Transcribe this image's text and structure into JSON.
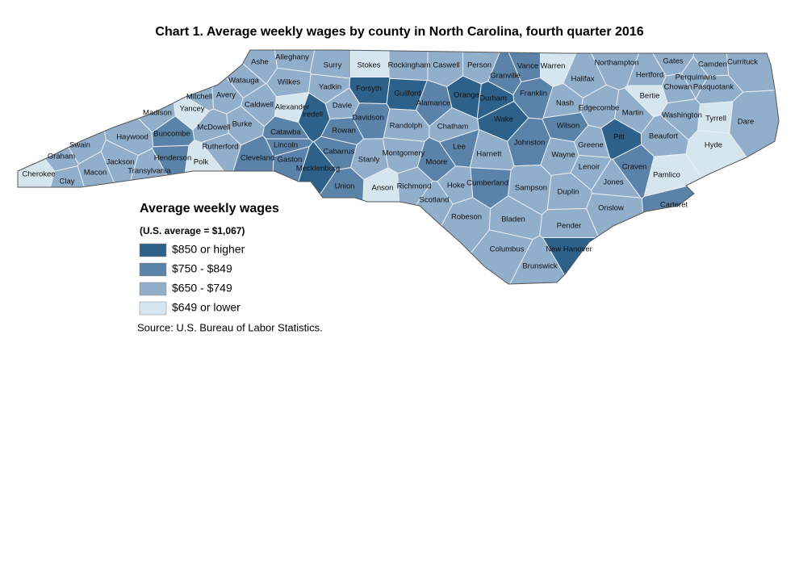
{
  "title": "Chart 1. Average weekly wages by county in North Carolina, fourth quarter 2016",
  "legend": {
    "title": "Average weekly wages",
    "subtitle": "(U.S. average = $1,067)",
    "items": [
      {
        "label": "$850 or higher",
        "color": "#2e6189"
      },
      {
        "label": "$750 - $849",
        "color": "#5b82a8"
      },
      {
        "label": "$650 - $749",
        "color": "#91aecb"
      },
      {
        "label": "$649 or lower",
        "color": "#d6e6ee"
      }
    ]
  },
  "source": "Source: U.S. Bureau of Labor Statistics.",
  "counties": [
    {
      "name": "Ashe",
      "color": "#91aecb"
    },
    {
      "name": "Alleghany",
      "color": "#91aecb"
    },
    {
      "name": "Surry",
      "color": "#91aecb"
    },
    {
      "name": "Stokes",
      "color": "#d6e6ee"
    },
    {
      "name": "Rockingham",
      "color": "#91aecb"
    },
    {
      "name": "Caswell",
      "color": "#91aecb"
    },
    {
      "name": "Person",
      "color": "#91aecb"
    },
    {
      "name": "Vance",
      "color": "#5b82a8"
    },
    {
      "name": "Warren",
      "color": "#d6e6ee"
    },
    {
      "name": "Northampton",
      "color": "#91aecb"
    },
    {
      "name": "Gates",
      "color": "#91aecb"
    },
    {
      "name": "Camden",
      "color": "#91aecb"
    },
    {
      "name": "Currituck",
      "color": "#91aecb"
    },
    {
      "name": "Hertford",
      "color": "#91aecb"
    },
    {
      "name": "Perquimans",
      "color": "#91aecb"
    },
    {
      "name": "Chowan",
      "color": "#91aecb"
    },
    {
      "name": "Pasquotank",
      "color": "#91aecb"
    },
    {
      "name": "Watauga",
      "color": "#91aecb"
    },
    {
      "name": "Wilkes",
      "color": "#91aecb"
    },
    {
      "name": "Yadkin",
      "color": "#91aecb"
    },
    {
      "name": "Forsyth",
      "color": "#2e6189"
    },
    {
      "name": "Guilford",
      "color": "#2e6189"
    },
    {
      "name": "Alamance",
      "color": "#5b82a8"
    },
    {
      "name": "Orange",
      "color": "#2e6189"
    },
    {
      "name": "Durham",
      "color": "#2e6189"
    },
    {
      "name": "Granville",
      "color": "#5b82a8"
    },
    {
      "name": "Franklin",
      "color": "#5b82a8"
    },
    {
      "name": "Halifax",
      "color": "#91aecb"
    },
    {
      "name": "Avery",
      "color": "#91aecb"
    },
    {
      "name": "Mitchell",
      "color": "#91aecb"
    },
    {
      "name": "Yancey",
      "color": "#d6e6ee"
    },
    {
      "name": "Madison",
      "color": "#91aecb"
    },
    {
      "name": "Caldwell",
      "color": "#91aecb"
    },
    {
      "name": "Alexander",
      "color": "#d6e6ee"
    },
    {
      "name": "Iredell",
      "color": "#2e6189"
    },
    {
      "name": "Davie",
      "color": "#91aecb"
    },
    {
      "name": "Davidson",
      "color": "#5b82a8"
    },
    {
      "name": "Rowan",
      "color": "#5b82a8"
    },
    {
      "name": "Randolph",
      "color": "#91aecb"
    },
    {
      "name": "Chatham",
      "color": "#91aecb"
    },
    {
      "name": "Wake",
      "color": "#2e6189"
    },
    {
      "name": "Nash",
      "color": "#91aecb"
    },
    {
      "name": "Edgecombe",
      "color": "#91aecb"
    },
    {
      "name": "Martin",
      "color": "#91aecb"
    },
    {
      "name": "Bertie",
      "color": "#d6e6ee"
    },
    {
      "name": "Washington",
      "color": "#91aecb"
    },
    {
      "name": "Tyrrell",
      "color": "#d6e6ee"
    },
    {
      "name": "Dare",
      "color": "#91aecb"
    },
    {
      "name": "Wilson",
      "color": "#5b82a8"
    },
    {
      "name": "Pitt",
      "color": "#2e6189"
    },
    {
      "name": "Beaufort",
      "color": "#91aecb"
    },
    {
      "name": "Hyde",
      "color": "#d6e6ee"
    },
    {
      "name": "Haywood",
      "color": "#91aecb"
    },
    {
      "name": "Buncombe",
      "color": "#5b82a8"
    },
    {
      "name": "McDowell",
      "color": "#91aecb"
    },
    {
      "name": "Burke",
      "color": "#91aecb"
    },
    {
      "name": "Catawba",
      "color": "#5b82a8"
    },
    {
      "name": "Lincoln",
      "color": "#5b82a8"
    },
    {
      "name": "Rutherford",
      "color": "#91aecb"
    },
    {
      "name": "Cabarrus",
      "color": "#5b82a8"
    },
    {
      "name": "Stanly",
      "color": "#91aecb"
    },
    {
      "name": "Montgomery",
      "color": "#91aecb"
    },
    {
      "name": "Moore",
      "color": "#5b82a8"
    },
    {
      "name": "Lee",
      "color": "#5b82a8"
    },
    {
      "name": "Harnett",
      "color": "#91aecb"
    },
    {
      "name": "Johnston",
      "color": "#5b82a8"
    },
    {
      "name": "Wayne",
      "color": "#91aecb"
    },
    {
      "name": "Greene",
      "color": "#91aecb"
    },
    {
      "name": "Lenoir",
      "color": "#91aecb"
    },
    {
      "name": "Craven",
      "color": "#5b82a8"
    },
    {
      "name": "Pamlico",
      "color": "#d6e6ee"
    },
    {
      "name": "Swain",
      "color": "#91aecb"
    },
    {
      "name": "Graham",
      "color": "#91aecb"
    },
    {
      "name": "Jackson",
      "color": "#91aecb"
    },
    {
      "name": "Henderson",
      "color": "#5b82a8"
    },
    {
      "name": "Polk",
      "color": "#d6e6ee"
    },
    {
      "name": "Cleveland",
      "color": "#5b82a8"
    },
    {
      "name": "Gaston",
      "color": "#5b82a8"
    },
    {
      "name": "Mecklenburg",
      "color": "#2e6189"
    },
    {
      "name": "Union",
      "color": "#5b82a8"
    },
    {
      "name": "Anson",
      "color": "#d6e6ee"
    },
    {
      "name": "Richmond",
      "color": "#91aecb"
    },
    {
      "name": "Scotland",
      "color": "#91aecb"
    },
    {
      "name": "Hoke",
      "color": "#91aecb"
    },
    {
      "name": "Cumberland",
      "color": "#5b82a8"
    },
    {
      "name": "Sampson",
      "color": "#91aecb"
    },
    {
      "name": "Duplin",
      "color": "#91aecb"
    },
    {
      "name": "Jones",
      "color": "#91aecb"
    },
    {
      "name": "Onslow",
      "color": "#91aecb"
    },
    {
      "name": "Carteret",
      "color": "#5b82a8"
    },
    {
      "name": "Cherokee",
      "color": "#d6e6ee"
    },
    {
      "name": "Clay",
      "color": "#91aecb"
    },
    {
      "name": "Macon",
      "color": "#91aecb"
    },
    {
      "name": "Transylvania",
      "color": "#91aecb"
    },
    {
      "name": "Robeson",
      "color": "#91aecb"
    },
    {
      "name": "Bladen",
      "color": "#91aecb"
    },
    {
      "name": "Pender",
      "color": "#91aecb"
    },
    {
      "name": "Columbus",
      "color": "#91aecb"
    },
    {
      "name": "New Hanover",
      "color": "#2e6189"
    },
    {
      "name": "Brunswick",
      "color": "#91aecb"
    }
  ]
}
